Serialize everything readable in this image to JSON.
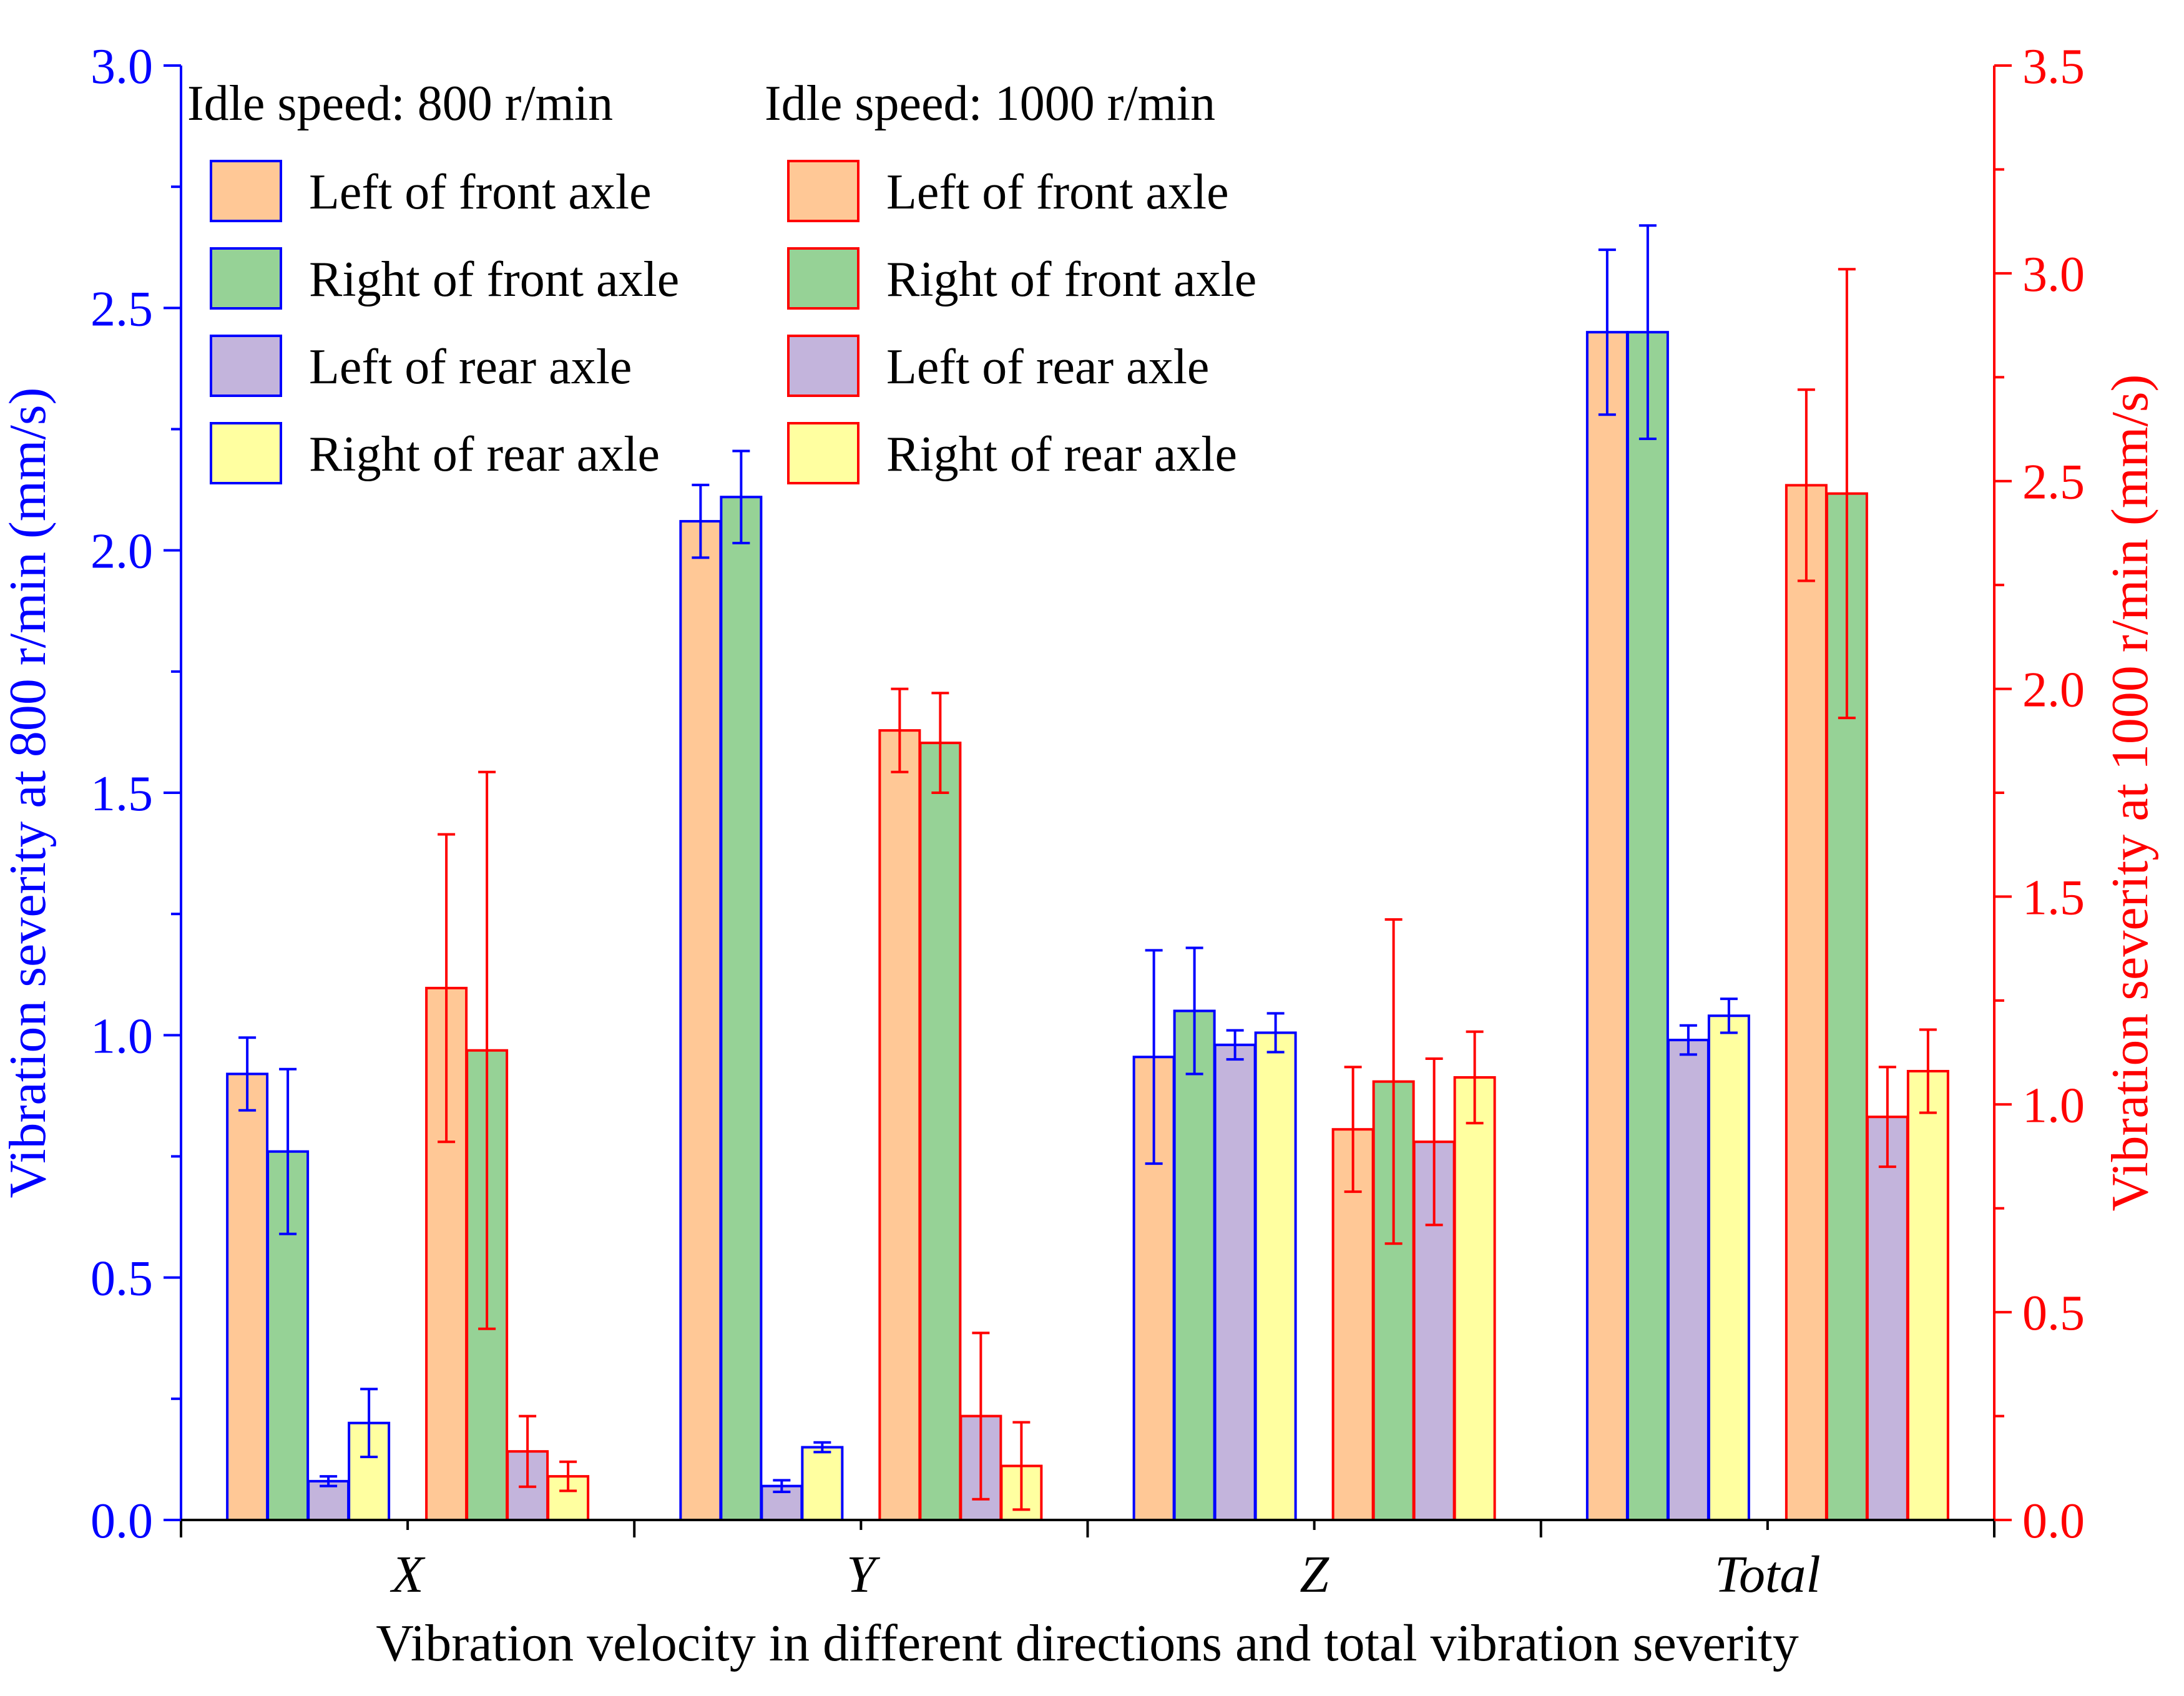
{
  "chart_data": {
    "type": "bar",
    "categories": [
      "X",
      "Y",
      "Z",
      "Total"
    ],
    "xlabel": "Vibration velocity in different directions and total vibration severity",
    "ylabel_left": "Vibration severity at 800 r/min (mm/s)",
    "ylabel_right": "Vibration severity at 1000 r/min (mm/s)",
    "ylim_left": [
      0,
      3.0
    ],
    "ylim_right": [
      0,
      3.5
    ],
    "yticks_left": [
      "0.0",
      "0.5",
      "1.0",
      "1.5",
      "2.0",
      "2.5",
      "3.0"
    ],
    "yticks_right": [
      "0.0",
      "0.5",
      "1.0",
      "1.5",
      "2.0",
      "2.5",
      "3.0",
      "3.5"
    ],
    "groups": [
      {
        "name": "Idle speed: 800 r/min",
        "axis": "left",
        "edge_color": "#0000FF",
        "series": [
          {
            "name": "Left of front axle",
            "fill": "#FFC896",
            "values": [
              0.92,
              2.06,
              0.955,
              2.45
            ],
            "errors": [
              0.075,
              0.075,
              0.22,
              0.17
            ]
          },
          {
            "name": "Right of front axle",
            "fill": "#96D296",
            "values": [
              0.76,
              2.11,
              1.05,
              2.45
            ],
            "errors": [
              0.17,
              0.095,
              0.13,
              0.22
            ]
          },
          {
            "name": "Left of rear axle",
            "fill": "#C3B4DC",
            "values": [
              0.08,
              0.07,
              0.98,
              0.99
            ],
            "errors": [
              0.01,
              0.012,
              0.03,
              0.03
            ]
          },
          {
            "name": "Right of rear axle",
            "fill": "#FFFFA0",
            "values": [
              0.2,
              0.15,
              1.005,
              1.04
            ],
            "errors": [
              0.07,
              0.01,
              0.04,
              0.035
            ]
          }
        ]
      },
      {
        "name": "Idle speed: 1000 r/min",
        "axis": "right",
        "edge_color": "#FF0000",
        "series": [
          {
            "name": "Left of front axle",
            "fill": "#FFC896",
            "values": [
              1.28,
              1.9,
              0.94,
              2.49
            ],
            "errors": [
              0.37,
              0.1,
              0.15,
              0.23
            ]
          },
          {
            "name": "Right of front axle",
            "fill": "#96D296",
            "values": [
              1.13,
              1.87,
              1.055,
              2.47
            ],
            "errors": [
              0.67,
              0.12,
              0.39,
              0.54
            ]
          },
          {
            "name": "Left of rear axle",
            "fill": "#C3B4DC",
            "values": [
              0.165,
              0.25,
              0.91,
              0.97
            ],
            "errors": [
              0.085,
              0.2,
              0.2,
              0.12
            ]
          },
          {
            "name": "Right of rear axle",
            "fill": "#FFFFA0",
            "values": [
              0.105,
              0.13,
              1.065,
              1.08
            ],
            "errors": [
              0.035,
              0.105,
              0.11,
              0.1
            ]
          }
        ]
      }
    ],
    "legend_placement": "top-left"
  }
}
